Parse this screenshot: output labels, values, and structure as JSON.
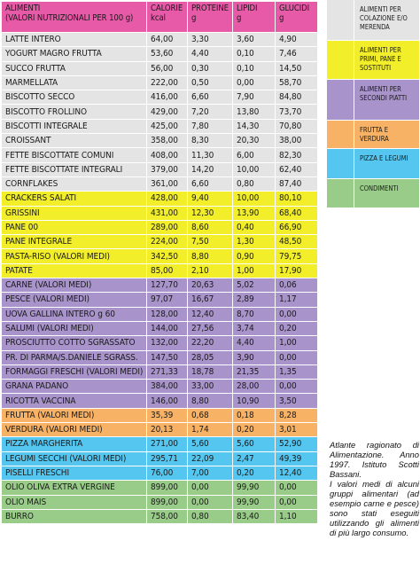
{
  "header": {
    "col_food_line1": "ALIMENTI",
    "col_food_line2": "(VALORI NUTRIZIONALI PER 100 g)",
    "col_cal_line1": "CALORIE",
    "col_cal_line2": "kcal",
    "col_prot_line1": "PROTEINE",
    "col_prot_line2": "g",
    "col_lip_line1": "LIPIDI",
    "col_lip_line2": "g",
    "col_gluc_line1": "GLUCIDI",
    "col_gluc_line2": "g"
  },
  "colors": {
    "header": "#e75aa8",
    "colazione": "#e4e4e4",
    "primi": "#f2ef2a",
    "secondi": "#a893cb",
    "frutta": "#f7b266",
    "pizza": "#55c6ef",
    "condimenti": "#99cc88"
  },
  "rows": [
    {
      "name": "LATTE INTERO",
      "cal": "64,00",
      "prot": "3,30",
      "lip": "3,60",
      "gluc": "4,90",
      "group": "colazione"
    },
    {
      "name": "YOGURT MAGRO FRUTTA",
      "cal": "53,60",
      "prot": "4,40",
      "lip": "0,10",
      "gluc": "7,46",
      "group": "colazione"
    },
    {
      "name": "SUCCO FRUTTA",
      "cal": "56,00",
      "prot": "0,30",
      "lip": "0,10",
      "gluc": "14,50",
      "group": "colazione"
    },
    {
      "name": "MARMELLATA",
      "cal": "222,00",
      "prot": "0,50",
      "lip": "0,00",
      "gluc": "58,70",
      "group": "colazione"
    },
    {
      "name": "BISCOTTO SECCO",
      "cal": "416,00",
      "prot": "6,60",
      "lip": "7,90",
      "gluc": "84,80",
      "group": "colazione"
    },
    {
      "name": "BISCOTTO FROLLINO",
      "cal": "429,00",
      "prot": "7,20",
      "lip": "13,80",
      "gluc": "73,70",
      "group": "colazione"
    },
    {
      "name": "BISCOTTI INTEGRALE",
      "cal": "425,00",
      "prot": "7,80",
      "lip": "14,30",
      "gluc": "70,80",
      "group": "colazione"
    },
    {
      "name": "CROISSANT",
      "cal": "358,00",
      "prot": "8,30",
      "lip": "20,30",
      "gluc": "38,00",
      "group": "colazione"
    },
    {
      "name": "FETTE BISCOTTATE COMUNI",
      "cal": "408,00",
      "prot": "11,30",
      "lip": "6,00",
      "gluc": "82,30",
      "group": "colazione"
    },
    {
      "name": "FETTE BISCOTTATE INTEGRALI",
      "cal": "379,00",
      "prot": "14,20",
      "lip": "10,00",
      "gluc": "62,40",
      "group": "colazione"
    },
    {
      "name": "CORNFLAKES",
      "cal": "361,00",
      "prot": "6,60",
      "lip": "0,80",
      "gluc": "87,40",
      "group": "colazione"
    },
    {
      "name": "CRACKERS SALATI",
      "cal": "428,00",
      "prot": "9,40",
      "lip": "10,00",
      "gluc": "80,10",
      "group": "primi"
    },
    {
      "name": "GRISSINI",
      "cal": "431,00",
      "prot": "12,30",
      "lip": "13,90",
      "gluc": "68,40",
      "group": "primi"
    },
    {
      "name": "PANE 00",
      "cal": "289,00",
      "prot": "8,60",
      "lip": "0,40",
      "gluc": "66,90",
      "group": "primi"
    },
    {
      "name": "PANE INTEGRALE",
      "cal": "224,00",
      "prot": "7,50",
      "lip": "1,30",
      "gluc": "48,50",
      "group": "primi"
    },
    {
      "name": "PASTA-RISO (VALORI MEDI)",
      "cal": "342,50",
      "prot": "8,80",
      "lip": "0,90",
      "gluc": "79,75",
      "group": "primi"
    },
    {
      "name": "PATATE",
      "cal": "85,00",
      "prot": "2,10",
      "lip": "1,00",
      "gluc": "17,90",
      "group": "primi"
    },
    {
      "name": "CARNE (VALORI MEDI)",
      "cal": "127,70",
      "prot": "20,63",
      "lip": "5,02",
      "gluc": "0,06",
      "group": "secondi"
    },
    {
      "name": "PESCE (VALORI MEDI)",
      "cal": "97,07",
      "prot": "16,67",
      "lip": "2,89",
      "gluc": "1,17",
      "group": "secondi"
    },
    {
      "name": "UOVA GALLINA INTERO g 60",
      "cal": "128,00",
      "prot": "12,40",
      "lip": "8,70",
      "gluc": "0,00",
      "group": "secondi"
    },
    {
      "name": "SALUMI (VALORI MEDI)",
      "cal": "144,00",
      "prot": "27,56",
      "lip": "3,74",
      "gluc": "0,20",
      "group": "secondi"
    },
    {
      "name": "PROSCIUTTO COTTO SGRASSATO",
      "cal": "132,00",
      "prot": "22,20",
      "lip": "4,40",
      "gluc": "1,00",
      "group": "secondi"
    },
    {
      "name": "PR. DI PARMA/S.DANIELE SGRASS.",
      "cal": "147,50",
      "prot": "28,05",
      "lip": "3,90",
      "gluc": "0,00",
      "group": "secondi"
    },
    {
      "name": "FORMAGGI FRESCHI (VALORI MEDI)",
      "cal": "271,33",
      "prot": "18,78",
      "lip": "21,35",
      "gluc": "1,35",
      "group": "secondi"
    },
    {
      "name": "GRANA PADANO",
      "cal": "384,00",
      "prot": "33,00",
      "lip": "28,00",
      "gluc": "0,00",
      "group": "secondi"
    },
    {
      "name": "RICOTTA VACCINA",
      "cal": "146,00",
      "prot": "8,80",
      "lip": "10,90",
      "gluc": "3,50",
      "group": "secondi"
    },
    {
      "name": "FRUTTA (VALORI MEDI)",
      "cal": "35,39",
      "prot": "0,68",
      "lip": "0,18",
      "gluc": "8,28",
      "group": "frutta"
    },
    {
      "name": "VERDURA (VALORI MEDI)",
      "cal": "20,13",
      "prot": "1,74",
      "lip": "0,20",
      "gluc": "3,01",
      "group": "frutta"
    },
    {
      "name": "PIZZA MARGHERITA",
      "cal": "271,00",
      "prot": "5,60",
      "lip": "5,60",
      "gluc": "52,90",
      "group": "pizza"
    },
    {
      "name": "LEGUMI SECCHI (VALORI MEDI)",
      "cal": "295,71",
      "prot": "22,09",
      "lip": "2,47",
      "gluc": "49,39",
      "group": "pizza"
    },
    {
      "name": "PISELLI FRESCHI",
      "cal": "76,00",
      "prot": "7,00",
      "lip": "0,20",
      "gluc": "12,40",
      "group": "pizza"
    },
    {
      "name": "OLIO OLIVA EXTRA VERGINE",
      "cal": "899,00",
      "prot": "0,00",
      "lip": "99,90",
      "gluc": "0,00",
      "group": "condimenti"
    },
    {
      "name": "OLIO MAIS",
      "cal": "899,00",
      "prot": "0,00",
      "lip": "99,90",
      "gluc": "0,00",
      "group": "condimenti"
    },
    {
      "name": "BURRO",
      "cal": "758,00",
      "prot": "0,80",
      "lip": "83,40",
      "gluc": "1,10",
      "group": "condimenti"
    }
  ],
  "legend": [
    {
      "group": "colazione",
      "label": "ALIMENTI PER COLAZIONE E/O MERENDA",
      "height": 0
    },
    {
      "group": "primi",
      "label": "ALIMENTI PER PRIMI, PANE E SOSTITUTI",
      "height": 0
    },
    {
      "group": "secondi",
      "label": "ALIMENTI PER SECONDI PIATTI",
      "height": 0
    },
    {
      "group": "frutta",
      "label": "FRUTTA E VERDURA",
      "height": 0
    },
    {
      "group": "pizza",
      "label": "PIZZA E LEGUMI",
      "height": 0
    },
    {
      "group": "condimenti",
      "label": "CONDIMENTI",
      "height": 0
    }
  ],
  "note": {
    "citation": "Atlante ragionato di Alimentazione. Anno 1997. Istituto Scotti Bassani.",
    "text": "I valori medi di alcuni gruppi alimentari (ad esempio carne e pesce) sono stati eseguiti utilizzando gli alimenti di più largo consumo."
  }
}
